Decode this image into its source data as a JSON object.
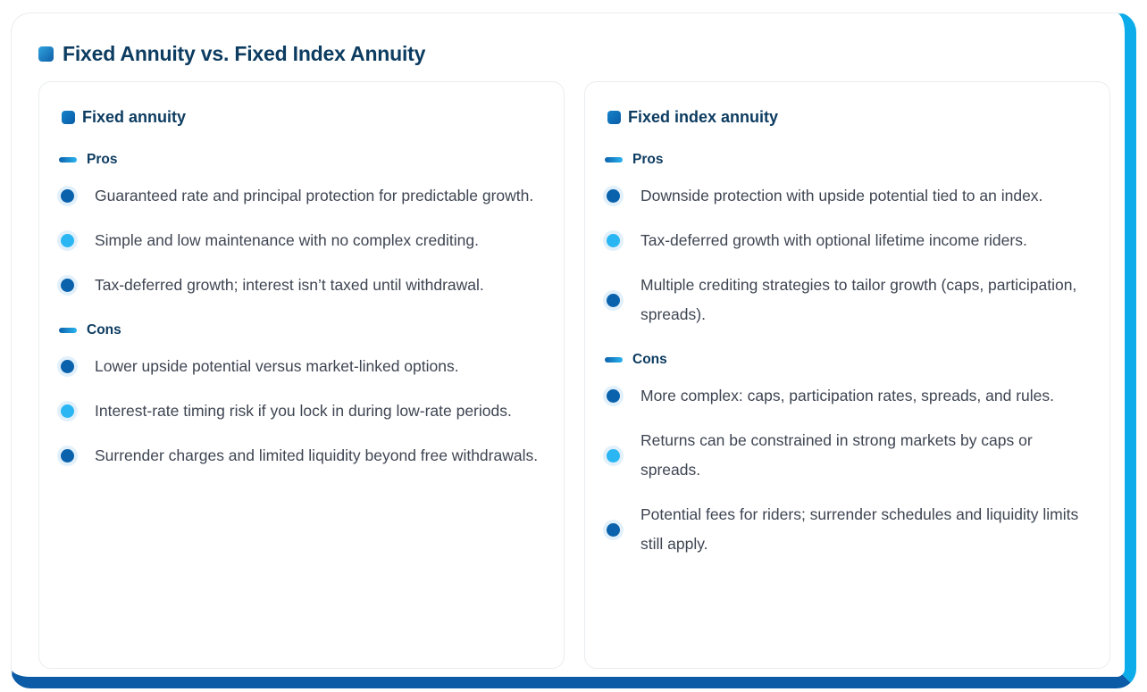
{
  "theme": {
    "accent_navy": "#0b5ba6",
    "accent_cyan": "#0cabe9",
    "heading_navy": "#0d3c61",
    "body_text": "#3e4552",
    "bullet_dark": "#0a62ac",
    "bullet_light": "#29b6f2",
    "bullet_halo": "#e1f0fa",
    "card_border": "#e9ecef"
  },
  "header": {
    "title": "Fixed Annuity vs. Fixed Index Annuity"
  },
  "columns": [
    {
      "title": "Fixed annuity",
      "sections": [
        {
          "label": "Pros",
          "items": [
            "Guaranteed rate and principal protection for predictable growth.",
            "Simple and low maintenance with no complex crediting.",
            "Tax-deferred growth; interest isn’t taxed until withdrawal."
          ]
        },
        {
          "label": "Cons",
          "items": [
            "Lower upside potential versus market-linked options.",
            "Interest-rate timing risk if you lock in during low-rate periods.",
            "Surrender charges and limited liquidity beyond free withdrawals."
          ]
        }
      ]
    },
    {
      "title": "Fixed index annuity",
      "sections": [
        {
          "label": "Pros",
          "items": [
            "Downside protection with upside potential tied to an index.",
            "Tax-deferred growth with optional lifetime income riders.",
            "Multiple crediting strategies to tailor growth (caps, participation, spreads)."
          ]
        },
        {
          "label": "Cons",
          "items": [
            "More complex: caps, participation rates, spreads, and rules.",
            "Returns can be constrained in strong markets by caps or spreads.",
            "Potential fees for riders; surrender schedules and liquidity limits still apply."
          ]
        }
      ]
    }
  ]
}
